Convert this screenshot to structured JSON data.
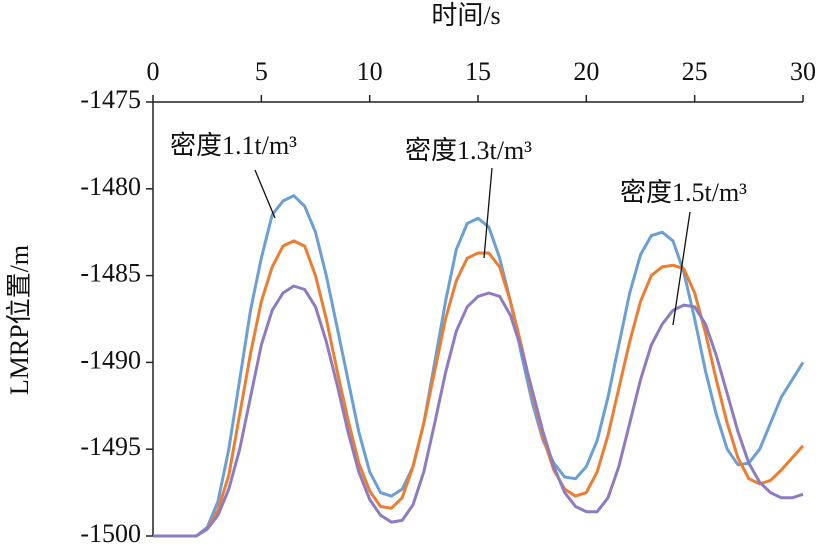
{
  "chart_data": {
    "type": "line",
    "xlabel": "时间/s",
    "ylabel": "LMRP位置/m",
    "x": [
      0,
      0.5,
      1,
      1.5,
      2,
      2.5,
      3,
      3.5,
      4,
      4.5,
      5,
      5.5,
      6,
      6.5,
      7,
      7.5,
      8,
      8.5,
      9,
      9.5,
      10,
      10.5,
      11,
      11.5,
      12,
      12.5,
      13,
      13.5,
      14,
      14.5,
      15,
      15.5,
      16,
      16.5,
      17,
      17.5,
      18,
      18.5,
      19,
      19.5,
      20,
      20.5,
      21,
      21.5,
      22,
      22.5,
      23,
      23.5,
      24,
      24.5,
      25,
      25.5,
      26,
      26.5,
      27,
      27.5,
      28,
      28.5,
      29,
      29.5,
      30
    ],
    "series": [
      {
        "name": "密度1.1t/m³",
        "color": "#6b9fd6",
        "values": [
          -1500,
          -1500,
          -1500,
          -1500,
          -1500,
          -1499.5,
          -1498,
          -1495,
          -1491,
          -1487,
          -1484,
          -1481.5,
          -1480.7,
          -1480.4,
          -1481,
          -1482.5,
          -1485,
          -1488,
          -1491,
          -1494,
          -1496.3,
          -1497.5,
          -1497.7,
          -1497.3,
          -1496,
          -1493.5,
          -1490,
          -1486.5,
          -1483.5,
          -1482,
          -1481.7,
          -1482.2,
          -1484,
          -1486.5,
          -1489.5,
          -1492.3,
          -1494.5,
          -1495.8,
          -1496.6,
          -1496.7,
          -1496,
          -1494.5,
          -1492,
          -1489,
          -1486,
          -1483.8,
          -1482.7,
          -1482.5,
          -1483,
          -1484.8,
          -1487.5,
          -1490.5,
          -1493,
          -1495,
          -1495.9,
          -1495.8,
          -1495,
          -1493.5,
          -1492,
          -1491,
          -1490
        ]
      },
      {
        "name": "密度1.3t/m³",
        "color": "#ed7d31",
        "values": [
          -1500,
          -1500,
          -1500,
          -1500,
          -1500,
          -1499.6,
          -1498.5,
          -1496.5,
          -1493,
          -1489.5,
          -1486.5,
          -1484.5,
          -1483.3,
          -1483,
          -1483.3,
          -1485,
          -1487.5,
          -1490.5,
          -1493.3,
          -1495.8,
          -1497.4,
          -1498.3,
          -1498.4,
          -1497.8,
          -1496,
          -1493.5,
          -1490.5,
          -1487.5,
          -1485.3,
          -1484,
          -1483.7,
          -1483.7,
          -1484.5,
          -1486.5,
          -1489,
          -1491.8,
          -1494.3,
          -1496.2,
          -1497.3,
          -1497.7,
          -1497.5,
          -1496.3,
          -1494.2,
          -1491.5,
          -1488.8,
          -1486.5,
          -1485,
          -1484.5,
          -1484.4,
          -1484.6,
          -1486,
          -1488.3,
          -1491,
          -1493.5,
          -1495.5,
          -1496.7,
          -1497,
          -1496.8,
          -1496.2,
          -1495.5,
          -1494.8
        ]
      },
      {
        "name": "密度1.5t/m³",
        "color": "#8e7cc3",
        "values": [
          -1500,
          -1500,
          -1500,
          -1500,
          -1500,
          -1499.6,
          -1498.8,
          -1497.3,
          -1495,
          -1492,
          -1489,
          -1487,
          -1486,
          -1485.6,
          -1485.8,
          -1486.8,
          -1488.8,
          -1491.3,
          -1494,
          -1496.3,
          -1497.9,
          -1498.8,
          -1499.2,
          -1499.1,
          -1498.2,
          -1496.3,
          -1493.5,
          -1490.6,
          -1488.2,
          -1486.8,
          -1486.2,
          -1486,
          -1486.2,
          -1487.3,
          -1489.2,
          -1491.6,
          -1494,
          -1496,
          -1497.5,
          -1498.3,
          -1498.6,
          -1498.6,
          -1497.8,
          -1496,
          -1493.5,
          -1491,
          -1489,
          -1487.8,
          -1487,
          -1486.7,
          -1486.8,
          -1487.8,
          -1489.6,
          -1491.8,
          -1494,
          -1495.8,
          -1496.9,
          -1497.5,
          -1497.8,
          -1497.8,
          -1497.6
        ]
      }
    ],
    "xlim": [
      0,
      30
    ],
    "xticks": [
      0,
      5,
      10,
      15,
      20,
      25,
      30
    ],
    "ylim": [
      -1500,
      -1475
    ],
    "yticks": [
      -1475,
      -1480,
      -1485,
      -1490,
      -1495,
      -1500
    ]
  }
}
